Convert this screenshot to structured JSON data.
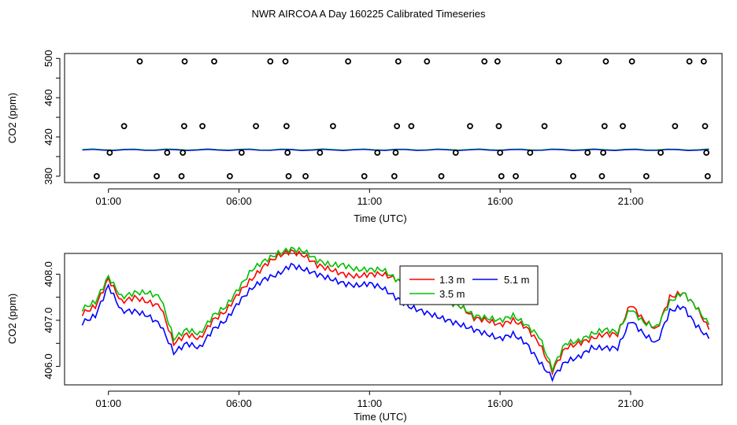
{
  "title": "NWR AIRCOA A  Day 160225  Calibrated Timeseries",
  "chart_data": [
    {
      "type": "scatter",
      "ylabel": "CO2 (ppm)",
      "xlabel": "Time (UTC)",
      "xlim": [
        23.32,
        48.5
      ],
      "ylim": [
        373.5,
        505
      ],
      "xticks": [
        25,
        30,
        35,
        40,
        45
      ],
      "xtick_labels": [
        "01:00",
        "06:00",
        "11:00",
        "16:00",
        "21:00"
      ],
      "yticks": [
        380,
        420,
        460,
        500
      ],
      "ytick_labels": [
        "380",
        "420",
        "460",
        "500"
      ],
      "yminor": [
        400,
        440,
        480
      ],
      "points": [
        {
          "x": 24.55,
          "y": 380
        },
        {
          "x": 25.05,
          "y": 404
        },
        {
          "x": 25.6,
          "y": 431
        },
        {
          "x": 26.2,
          "y": 497
        },
        {
          "x": 26.85,
          "y": 380
        },
        {
          "x": 27.25,
          "y": 404
        },
        {
          "x": 27.8,
          "y": 380
        },
        {
          "x": 27.85,
          "y": 404
        },
        {
          "x": 27.9,
          "y": 431
        },
        {
          "x": 27.92,
          "y": 497
        },
        {
          "x": 28.6,
          "y": 431
        },
        {
          "x": 29.05,
          "y": 497
        },
        {
          "x": 29.65,
          "y": 380
        },
        {
          "x": 30.1,
          "y": 404
        },
        {
          "x": 30.65,
          "y": 431
        },
        {
          "x": 31.2,
          "y": 497
        },
        {
          "x": 31.78,
          "y": 497
        },
        {
          "x": 31.82,
          "y": 431
        },
        {
          "x": 31.86,
          "y": 404
        },
        {
          "x": 31.9,
          "y": 380
        },
        {
          "x": 32.55,
          "y": 380
        },
        {
          "x": 33.1,
          "y": 404
        },
        {
          "x": 33.6,
          "y": 431
        },
        {
          "x": 34.18,
          "y": 497
        },
        {
          "x": 34.8,
          "y": 380
        },
        {
          "x": 35.3,
          "y": 404
        },
        {
          "x": 35.95,
          "y": 380
        },
        {
          "x": 36.0,
          "y": 404
        },
        {
          "x": 36.05,
          "y": 431
        },
        {
          "x": 36.1,
          "y": 497
        },
        {
          "x": 36.6,
          "y": 431
        },
        {
          "x": 37.2,
          "y": 497
        },
        {
          "x": 37.75,
          "y": 380
        },
        {
          "x": 38.3,
          "y": 404
        },
        {
          "x": 38.85,
          "y": 431
        },
        {
          "x": 39.4,
          "y": 497
        },
        {
          "x": 39.9,
          "y": 497
        },
        {
          "x": 39.95,
          "y": 431
        },
        {
          "x": 40.0,
          "y": 404
        },
        {
          "x": 40.05,
          "y": 380
        },
        {
          "x": 40.6,
          "y": 380
        },
        {
          "x": 41.15,
          "y": 404
        },
        {
          "x": 41.7,
          "y": 431
        },
        {
          "x": 42.25,
          "y": 497
        },
        {
          "x": 42.8,
          "y": 380
        },
        {
          "x": 43.35,
          "y": 404
        },
        {
          "x": 43.9,
          "y": 380
        },
        {
          "x": 43.95,
          "y": 404
        },
        {
          "x": 44.0,
          "y": 431
        },
        {
          "x": 44.05,
          "y": 497
        },
        {
          "x": 44.7,
          "y": 431
        },
        {
          "x": 45.05,
          "y": 497
        },
        {
          "x": 45.6,
          "y": 380
        },
        {
          "x": 46.15,
          "y": 404
        },
        {
          "x": 46.7,
          "y": 431
        },
        {
          "x": 47.25,
          "y": 497
        },
        {
          "x": 47.8,
          "y": 497
        },
        {
          "x": 47.85,
          "y": 431
        },
        {
          "x": 47.9,
          "y": 404
        },
        {
          "x": 47.95,
          "y": 380
        }
      ],
      "baseline_series": [
        {
          "name": "1.3 m",
          "color": "#ff0000",
          "value": 407.0
        },
        {
          "name": "3.5 m",
          "color": "#00c000",
          "value": 407.2
        },
        {
          "name": "5.1 m",
          "color": "#0000ff",
          "value": 406.7
        }
      ]
    },
    {
      "type": "line",
      "ylabel": "CO2 (ppm)",
      "xlabel": "Time (UTC)",
      "xlim": [
        23.32,
        48.5
      ],
      "ylim": [
        405.6,
        408.45
      ],
      "xticks": [
        25,
        30,
        35,
        40,
        45
      ],
      "xtick_labels": [
        "01:00",
        "06:00",
        "11:00",
        "16:00",
        "21:00"
      ],
      "yticks": [
        406.0,
        407.0,
        408.0
      ],
      "ytick_labels": [
        "406.0",
        "407.0",
        "408.0"
      ],
      "yminor": [
        406.5,
        407.5
      ],
      "legend": {
        "position": "upper-middle",
        "entries": [
          "1.3 m",
          "5.1 m",
          "3.5 m"
        ]
      },
      "x": [
        24.0,
        24.5,
        25.0,
        25.5,
        26.0,
        26.5,
        27.0,
        27.5,
        28.0,
        28.5,
        29.0,
        29.5,
        30.0,
        30.5,
        31.0,
        31.5,
        32.0,
        32.5,
        33.0,
        33.5,
        34.0,
        34.5,
        35.0,
        35.5,
        36.0,
        36.5,
        37.0,
        37.5,
        38.0,
        38.5,
        39.0,
        39.5,
        40.0,
        40.5,
        41.0,
        41.5,
        42.0,
        42.5,
        43.0,
        43.5,
        44.0,
        44.5,
        45.0,
        45.5,
        46.0,
        46.5,
        47.0,
        47.5,
        48.0
      ],
      "series": [
        {
          "name": "1.3 m",
          "color": "#ff0000",
          "values": [
            407.15,
            407.3,
            407.9,
            407.4,
            407.5,
            407.4,
            407.3,
            406.5,
            406.7,
            406.6,
            407.0,
            407.2,
            407.6,
            407.9,
            408.2,
            408.4,
            408.5,
            408.4,
            408.2,
            408.1,
            408.0,
            407.95,
            408.0,
            408.0,
            407.9,
            407.7,
            407.5,
            407.5,
            407.4,
            407.3,
            407.05,
            407.0,
            406.9,
            407.0,
            406.85,
            406.5,
            405.9,
            406.4,
            406.5,
            406.6,
            406.7,
            406.7,
            407.35,
            407.0,
            406.8,
            407.5,
            407.6,
            407.3,
            406.8
          ]
        },
        {
          "name": "3.5 m",
          "color": "#00c000",
          "values": [
            407.25,
            407.4,
            407.95,
            407.5,
            407.6,
            407.6,
            407.5,
            406.6,
            406.8,
            406.7,
            407.1,
            407.3,
            407.7,
            408.1,
            408.3,
            408.45,
            408.55,
            408.5,
            408.3,
            408.2,
            408.2,
            408.1,
            408.1,
            408.1,
            407.9,
            407.7,
            407.6,
            407.5,
            407.4,
            407.3,
            407.1,
            407.05,
            407.0,
            407.1,
            406.9,
            406.65,
            405.95,
            406.5,
            406.55,
            406.7,
            406.8,
            406.75,
            407.25,
            406.95,
            406.85,
            407.4,
            407.6,
            407.3,
            406.9
          ]
        },
        {
          "name": "5.1 m",
          "color": "#0000ff",
          "values": [
            406.95,
            407.1,
            407.75,
            407.2,
            407.2,
            407.1,
            406.9,
            406.3,
            406.5,
            406.4,
            406.8,
            407.0,
            407.4,
            407.7,
            407.9,
            408.0,
            408.2,
            408.1,
            408.0,
            407.9,
            407.8,
            407.75,
            407.8,
            407.7,
            407.5,
            407.3,
            407.2,
            407.1,
            407.0,
            406.9,
            406.8,
            406.7,
            406.6,
            406.7,
            406.5,
            406.1,
            405.75,
            406.1,
            406.2,
            406.4,
            406.4,
            406.4,
            407.0,
            406.7,
            406.5,
            407.2,
            407.3,
            406.9,
            406.6
          ]
        }
      ]
    }
  ]
}
